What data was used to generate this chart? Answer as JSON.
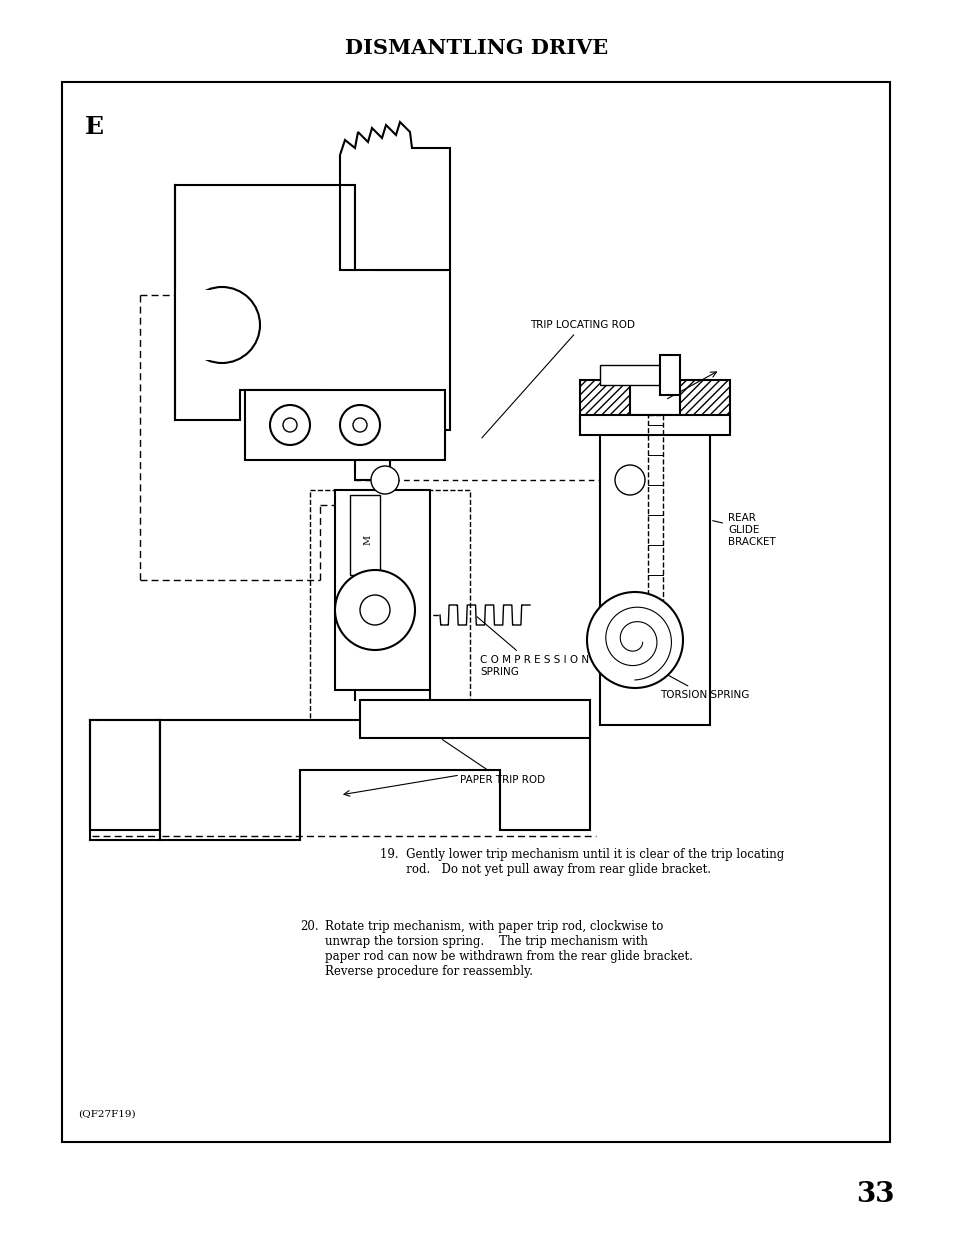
{
  "title": "DISMANTLING DRIVE",
  "page_number": "33",
  "diagram_label": "E",
  "figure_code": "(QF27F19)",
  "label_trip_rod": "TRIP LOCATING ROD",
  "label_rear_glide": "REAR\nGLIDE\nBRACKET",
  "label_compression": "C O M P R E S S I O N\nSPRING",
  "label_torsion": "TORSION SPRING",
  "label_paper_rod": "PAPER TRIP ROD",
  "step19": "19.  Gently lower trip mechanism until it is clear of the trip locating\n       rod.   Do not yet pull away from rear glide bracket.",
  "step20_num": "20.",
  "step20_text": "Rotate trip mechanism, with paper trip rod, clockwise to\nunwrap the torsion spring.    The trip mechanism with\npaper rod can now be withdrawn from the rear glide bracket.\nReverse procedure for reassembly.",
  "bg_color": "#ffffff",
  "text_color": "#000000"
}
